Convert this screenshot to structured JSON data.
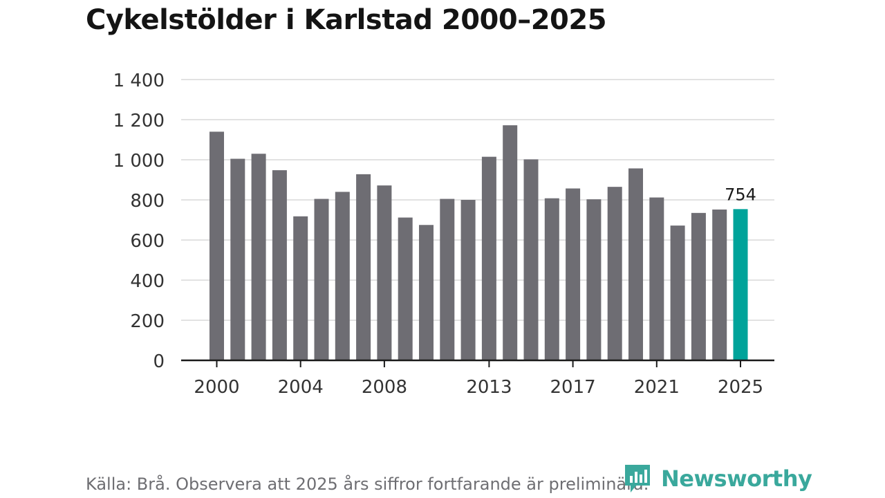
{
  "chart_data": {
    "type": "bar",
    "title": "Cykelstölder i Karlstad 2000–2025",
    "x": [
      2000,
      2001,
      2002,
      2003,
      2004,
      2005,
      2006,
      2007,
      2008,
      2009,
      2010,
      2011,
      2012,
      2013,
      2014,
      2015,
      2016,
      2017,
      2018,
      2019,
      2020,
      2021,
      2022,
      2023,
      2024,
      2025
    ],
    "values": [
      1140,
      1005,
      1030,
      948,
      718,
      805,
      840,
      928,
      872,
      712,
      675,
      805,
      800,
      1015,
      1172,
      1002,
      808,
      857,
      803,
      865,
      957,
      812,
      672,
      735,
      752,
      754
    ],
    "x_tick_labels": [
      "2000",
      "2004",
      "2008",
      "2013",
      "2017",
      "2021",
      "2025"
    ],
    "y_ticks": [
      0,
      200,
      400,
      600,
      800,
      1000,
      1200,
      1400
    ],
    "y_tick_labels": [
      "0",
      "200",
      "400",
      "600",
      "800",
      "1 000",
      "1 200",
      "1 400"
    ],
    "ylim": [
      0,
      1400
    ],
    "grid": true,
    "bar_color": "#6e6d73",
    "highlight_color": "#00a39a",
    "highlight": {
      "x": 2025,
      "label": "754"
    }
  },
  "footer": {
    "source": "Källa: Brå. Observera att 2025 års siffror fortfarande är preliminära."
  },
  "logo": {
    "text": "Newsworthy",
    "color": "#3aa89c",
    "icon": "newsworthy-logo-icon"
  }
}
